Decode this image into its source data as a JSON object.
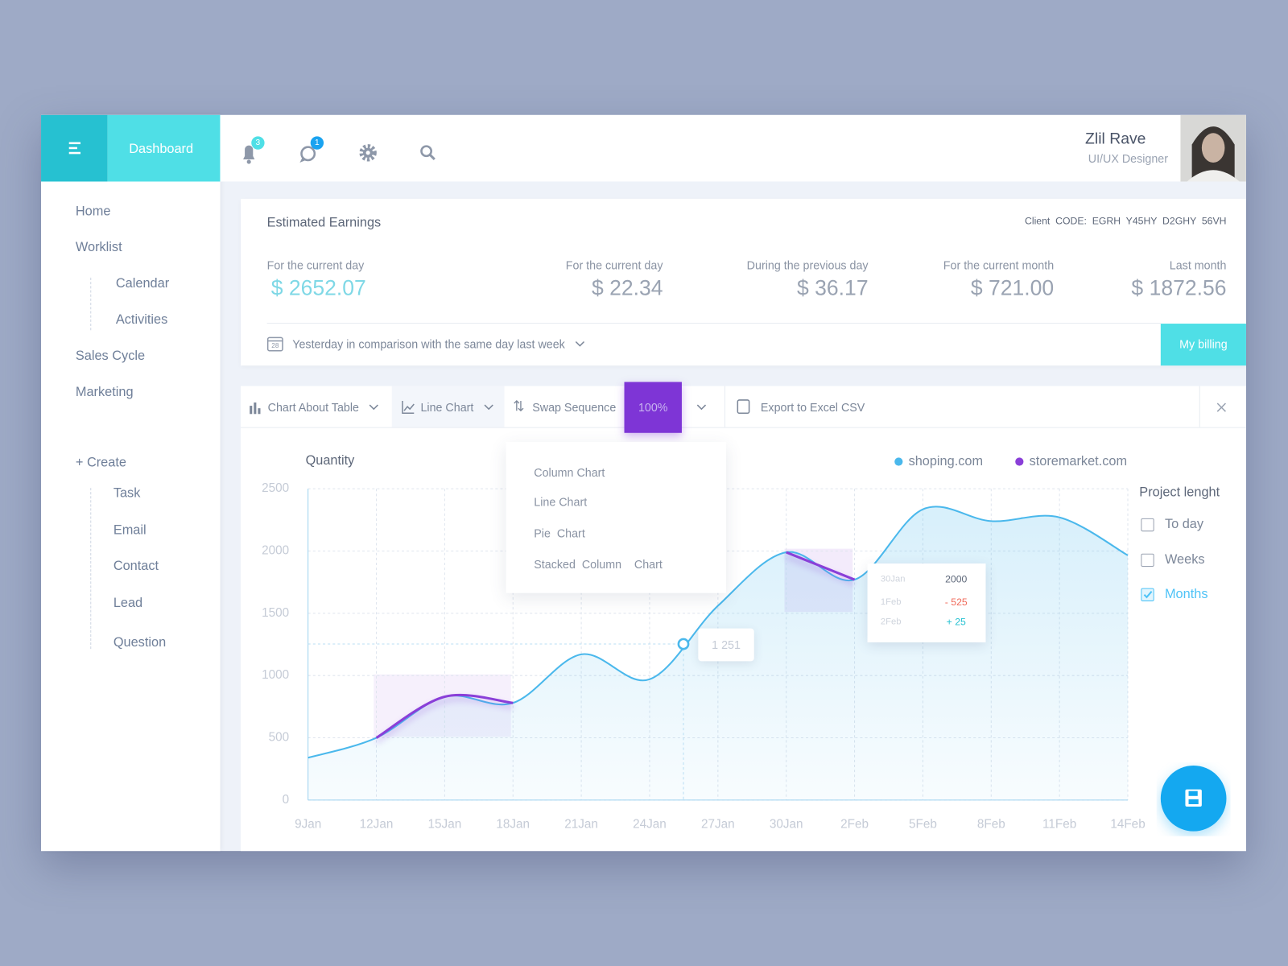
{
  "sidebar": {
    "brand": "Dashboard",
    "menu": [
      "Home",
      "Worklist",
      "Calendar",
      "Activities",
      "Sales Cycle",
      "Marketing"
    ],
    "create": "+ Create",
    "create_items": [
      "Task",
      "Email",
      "Contact",
      "Lead",
      "Question"
    ]
  },
  "header": {
    "notifications": "3",
    "messages": "1",
    "user_name": "Zlil Rave",
    "user_role": "UI/UX Designer"
  },
  "earnings": {
    "title": "Estimated Earnings",
    "client_code": "Client  CODE:  EGRH  Y45HY  D2GHY  56VH",
    "stats": [
      {
        "label": "For the current day",
        "value": "$ 2652.07"
      },
      {
        "label": "For the current day",
        "value": "$ 22.34"
      },
      {
        "label": "During the previous day",
        "value": "$ 36.17"
      },
      {
        "label": "For the current month",
        "value": "$ 721.00"
      },
      {
        "label": "Last month",
        "value": "$ 1872.56"
      }
    ],
    "calendar_day": "28",
    "comparison": "Yesterday in comparison with the same day last week",
    "billing": "My billing"
  },
  "toolbar": {
    "items": [
      "Chart About Table",
      "Line Chart",
      "Swap Sequence",
      "100%",
      "Export to Excel CSV"
    ]
  },
  "dropdown": [
    "Column Chart",
    "Line Chart",
    "Pie  Chart",
    "Stacked  Column    Chart"
  ],
  "chart_data": {
    "type": "line",
    "y_label": "Quantity",
    "x": [
      "9Jan",
      "12Jan",
      "15Jan",
      "18Jan",
      "21Jan",
      "24Jan",
      "27Jan",
      "30Jan",
      "2Feb",
      "5Feb",
      "8Feb",
      "11Feb",
      "14Feb"
    ],
    "series": [
      {
        "name": "shoping.com",
        "color": "#4ab8ec",
        "area": true,
        "values": [
          340,
          500,
          830,
          780,
          1170,
          970,
          1560,
          1990,
          1770,
          2335,
          2240,
          2270,
          1965
        ]
      },
      {
        "name": "storemarket.com",
        "color": "#8a3fd8",
        "area": false,
        "values": [
          null,
          500,
          830,
          780,
          null,
          null,
          null,
          1990,
          1770,
          null,
          null,
          null,
          null
        ]
      }
    ],
    "ylim": [
      0,
      2500
    ],
    "yticks": [
      0,
      500,
      1000,
      1500,
      2000,
      2500
    ],
    "grid": true,
    "annotation": "1 251"
  },
  "popup": {
    "rows": [
      [
        "30Jan",
        "2000"
      ],
      [
        "1Feb",
        "- 525"
      ],
      [
        "2Feb",
        "+ 25"
      ]
    ]
  },
  "filters": {
    "title": "Project lenght",
    "options": [
      {
        "label": "To day",
        "checked": false
      },
      {
        "label": "Weeks",
        "checked": false
      },
      {
        "label": "Months",
        "checked": true
      }
    ]
  }
}
